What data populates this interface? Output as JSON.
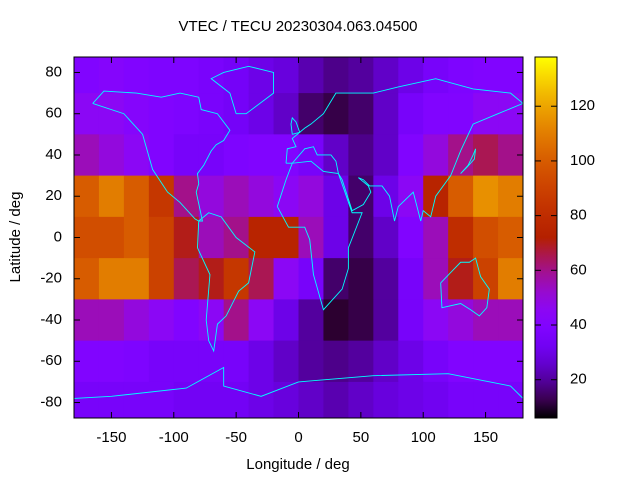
{
  "chart_data": {
    "type": "heatmap",
    "title": "VTEC / TECU 20230304.063.04500",
    "xlabel": "Longitude / deg",
    "ylabel": "Latitude / deg",
    "x": [
      -170,
      -150,
      -130,
      -110,
      -90,
      -70,
      -50,
      -30,
      -10,
      10,
      30,
      50,
      70,
      90,
      110,
      130,
      150,
      170
    ],
    "y": [
      80,
      60,
      40,
      20,
      0,
      -20,
      -40,
      -60,
      -80
    ],
    "z": [
      [
        40,
        42,
        40,
        38,
        38,
        36,
        34,
        30,
        28,
        22,
        18,
        20,
        25,
        30,
        35,
        38,
        40,
        40
      ],
      [
        45,
        45,
        42,
        40,
        38,
        36,
        34,
        30,
        25,
        15,
        12,
        15,
        25,
        35,
        40,
        40,
        45,
        45
      ],
      [
        55,
        50,
        45,
        40,
        35,
        35,
        38,
        40,
        40,
        35,
        25,
        18,
        25,
        40,
        50,
        60,
        65,
        60
      ],
      [
        100,
        110,
        100,
        85,
        60,
        50,
        55,
        50,
        45,
        50,
        30,
        15,
        30,
        45,
        75,
        100,
        115,
        110
      ],
      [
        95,
        95,
        100,
        90,
        70,
        55,
        60,
        75,
        75,
        55,
        30,
        15,
        25,
        40,
        55,
        80,
        95,
        100
      ],
      [
        100,
        110,
        110,
        90,
        65,
        70,
        85,
        65,
        45,
        35,
        15,
        12,
        20,
        35,
        55,
        70,
        90,
        110
      ],
      [
        55,
        55,
        50,
        45,
        40,
        45,
        60,
        45,
        30,
        20,
        10,
        12,
        20,
        35,
        45,
        50,
        55,
        55
      ],
      [
        40,
        40,
        38,
        35,
        35,
        35,
        35,
        30,
        25,
        20,
        18,
        20,
        25,
        30,
        35,
        40,
        40,
        40
      ],
      [
        35,
        35,
        35,
        35,
        33,
        33,
        33,
        30,
        28,
        25,
        22,
        25,
        28,
        30,
        32,
        35,
        35,
        35
      ]
    ],
    "xlim": [
      -180,
      180
    ],
    "ylim": [
      -87.5,
      87.5
    ],
    "xticks": [
      -150,
      -100,
      -50,
      0,
      50,
      100,
      150
    ],
    "yticks": [
      -80,
      -60,
      -40,
      -20,
      0,
      20,
      40,
      60,
      80
    ],
    "zlim": [
      6,
      138
    ],
    "zticks": [
      20,
      40,
      60,
      80,
      100,
      120
    ],
    "coastline_color": "#00ffff"
  }
}
